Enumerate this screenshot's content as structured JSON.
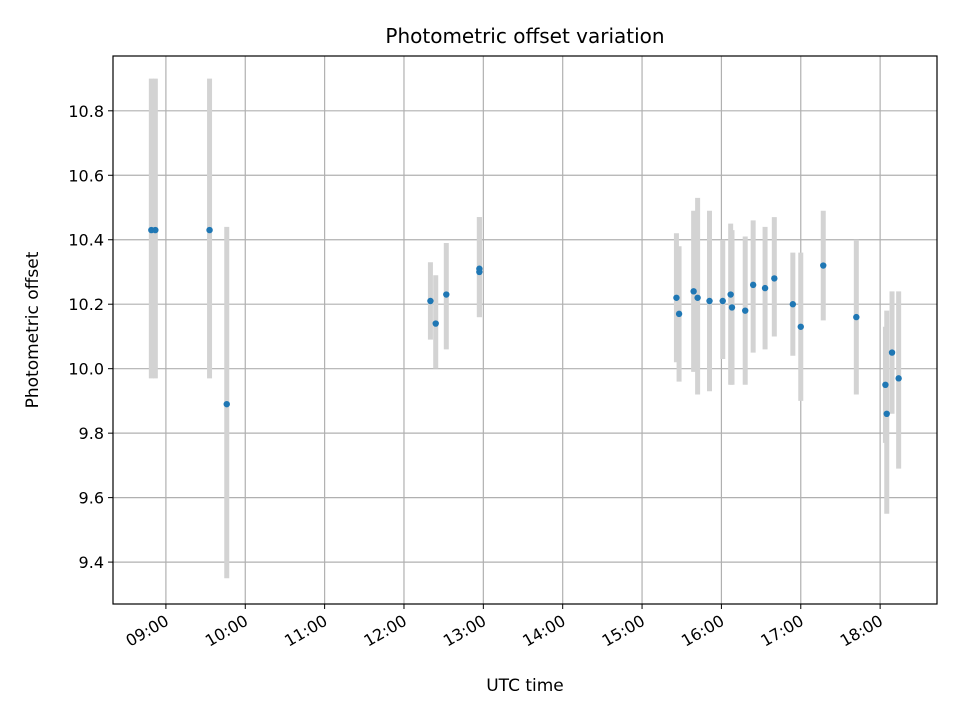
{
  "chart_data": {
    "type": "scatter",
    "title": "Photometric offset variation",
    "xlabel": "UTC time",
    "ylabel": "Photometric offset",
    "grid": true,
    "x_ticks": [
      "09:00",
      "10:00",
      "11:00",
      "12:00",
      "13:00",
      "14:00",
      "15:00",
      "16:00",
      "17:00",
      "18:00"
    ],
    "y_ticks": [
      "9.4",
      "9.6",
      "9.8",
      "10.0",
      "10.2",
      "10.4",
      "10.6",
      "10.8"
    ],
    "xlim": [
      "08:20",
      "18:43"
    ],
    "ylim": [
      9.27,
      10.97
    ],
    "marker_color": "#1f77b4",
    "errorbar_color": "#d3d3d3",
    "points": [
      {
        "time": "08:49",
        "y": 10.43,
        "ylow": 9.97,
        "yhigh": 10.9
      },
      {
        "time": "08:52",
        "y": 10.43,
        "ylow": 9.97,
        "yhigh": 10.9
      },
      {
        "time": "09:33",
        "y": 10.43,
        "ylow": 9.97,
        "yhigh": 10.9
      },
      {
        "time": "09:46",
        "y": 9.89,
        "ylow": 9.35,
        "yhigh": 10.44
      },
      {
        "time": "12:20",
        "y": 10.21,
        "ylow": 10.09,
        "yhigh": 10.33
      },
      {
        "time": "12:24",
        "y": 10.14,
        "ylow": 10.0,
        "yhigh": 10.29
      },
      {
        "time": "12:32",
        "y": 10.23,
        "ylow": 10.06,
        "yhigh": 10.39
      },
      {
        "time": "12:57",
        "y": 10.31,
        "ylow": 10.16,
        "yhigh": 10.47
      },
      {
        "time": "12:57",
        "y": 10.3,
        "ylow": 10.16,
        "yhigh": 10.47
      },
      {
        "time": "15:26",
        "y": 10.22,
        "ylow": 10.02,
        "yhigh": 10.42
      },
      {
        "time": "15:28",
        "y": 10.17,
        "ylow": 9.96,
        "yhigh": 10.38
      },
      {
        "time": "15:39",
        "y": 10.24,
        "ylow": 9.99,
        "yhigh": 10.49
      },
      {
        "time": "15:42",
        "y": 10.22,
        "ylow": 9.92,
        "yhigh": 10.53
      },
      {
        "time": "15:51",
        "y": 10.21,
        "ylow": 9.93,
        "yhigh": 10.49
      },
      {
        "time": "16:01",
        "y": 10.21,
        "ylow": 10.03,
        "yhigh": 10.4
      },
      {
        "time": "16:07",
        "y": 10.23,
        "ylow": 9.95,
        "yhigh": 10.45
      },
      {
        "time": "16:08",
        "y": 10.19,
        "ylow": 9.95,
        "yhigh": 10.43
      },
      {
        "time": "16:18",
        "y": 10.18,
        "ylow": 9.95,
        "yhigh": 10.41
      },
      {
        "time": "16:24",
        "y": 10.26,
        "ylow": 10.05,
        "yhigh": 10.46
      },
      {
        "time": "16:33",
        "y": 10.25,
        "ylow": 10.06,
        "yhigh": 10.44
      },
      {
        "time": "16:40",
        "y": 10.28,
        "ylow": 10.1,
        "yhigh": 10.47
      },
      {
        "time": "16:54",
        "y": 10.2,
        "ylow": 10.04,
        "yhigh": 10.36
      },
      {
        "time": "17:00",
        "y": 10.13,
        "ylow": 9.9,
        "yhigh": 10.36
      },
      {
        "time": "17:17",
        "y": 10.32,
        "ylow": 10.15,
        "yhigh": 10.49
      },
      {
        "time": "17:42",
        "y": 10.16,
        "ylow": 9.92,
        "yhigh": 10.4
      },
      {
        "time": "18:04",
        "y": 9.95,
        "ylow": 9.77,
        "yhigh": 10.13
      },
      {
        "time": "18:05",
        "y": 9.86,
        "ylow": 9.55,
        "yhigh": 10.18
      },
      {
        "time": "18:09",
        "y": 10.05,
        "ylow": 9.86,
        "yhigh": 10.24
      },
      {
        "time": "18:14",
        "y": 9.97,
        "ylow": 9.69,
        "yhigh": 10.24
      }
    ]
  }
}
